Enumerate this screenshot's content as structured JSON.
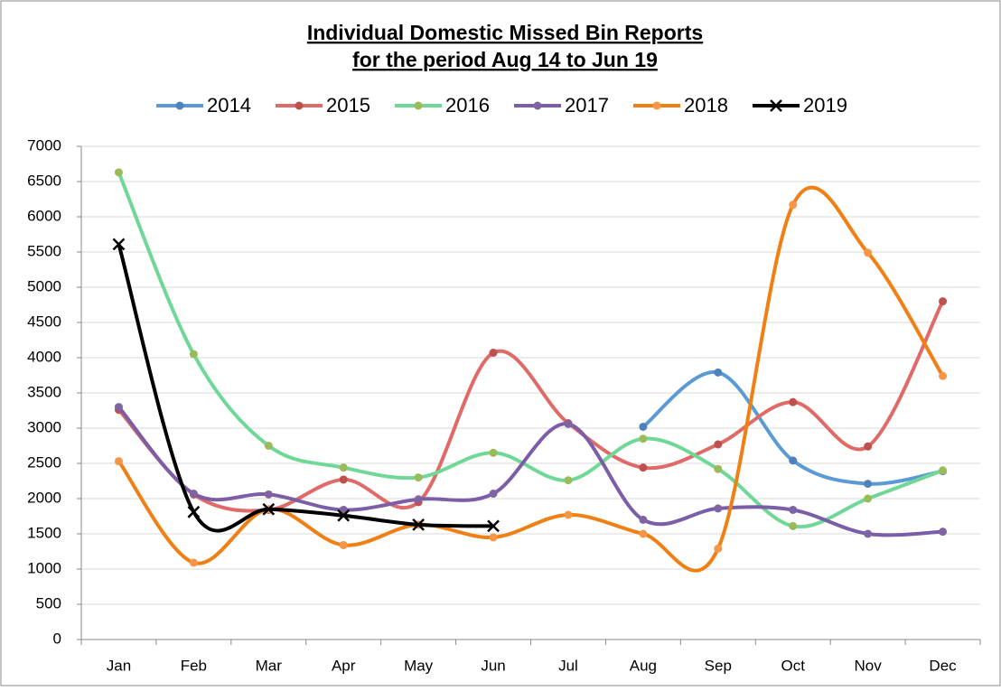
{
  "chart_data": {
    "type": "line",
    "title": "Individual Domestic Missed Bin Reports",
    "subtitle": "for the period Aug 14 to Jun 19",
    "categories": [
      "Jan",
      "Feb",
      "Mar",
      "Apr",
      "May",
      "Jun",
      "Jul",
      "Aug",
      "Sep",
      "Oct",
      "Nov",
      "Dec"
    ],
    "series": [
      {
        "name": "2014",
        "color": "#5b9bd5",
        "marker_color": "#4f81bd",
        "marker": "circle",
        "values": [
          null,
          null,
          null,
          null,
          null,
          null,
          null,
          3020,
          3790,
          2540,
          2210,
          2390
        ]
      },
      {
        "name": "2015",
        "color": "#df6a68",
        "marker_color": "#c0504d",
        "marker": "circle",
        "values": [
          3260,
          2060,
          1840,
          2270,
          1950,
          4070,
          3070,
          2440,
          2770,
          3370,
          2740,
          4800
        ]
      },
      {
        "name": "2016",
        "color": "#6fd896",
        "marker_color": "#9bbb59",
        "marker": "circle",
        "values": [
          6630,
          4050,
          2750,
          2440,
          2300,
          2650,
          2260,
          2850,
          2420,
          1610,
          2000,
          2400
        ]
      },
      {
        "name": "2017",
        "color": "#7b5ea7",
        "marker_color": "#8064a2",
        "marker": "circle",
        "values": [
          3300,
          2070,
          2060,
          1840,
          1990,
          2070,
          3060,
          1700,
          1860,
          1840,
          1500,
          1530
        ]
      },
      {
        "name": "2018",
        "color": "#f07f14",
        "marker_color": "#f79646",
        "marker": "circle",
        "values": [
          2530,
          1090,
          1850,
          1340,
          1630,
          1450,
          1770,
          1500,
          1290,
          6170,
          5490,
          3740
        ]
      },
      {
        "name": "2019",
        "color": "#000000",
        "marker_color": "#000000",
        "marker": "x",
        "values": [
          5610,
          1810,
          1850,
          1760,
          1630,
          1610,
          null,
          null,
          null,
          null,
          null,
          null
        ]
      }
    ],
    "ylim": [
      0,
      7000
    ],
    "yticks": [
      0,
      500,
      1000,
      1500,
      2000,
      2500,
      3000,
      3500,
      4000,
      4500,
      5000,
      5500,
      6000,
      6500,
      7000
    ],
    "grid": true,
    "smooth": true,
    "legend": "top"
  }
}
